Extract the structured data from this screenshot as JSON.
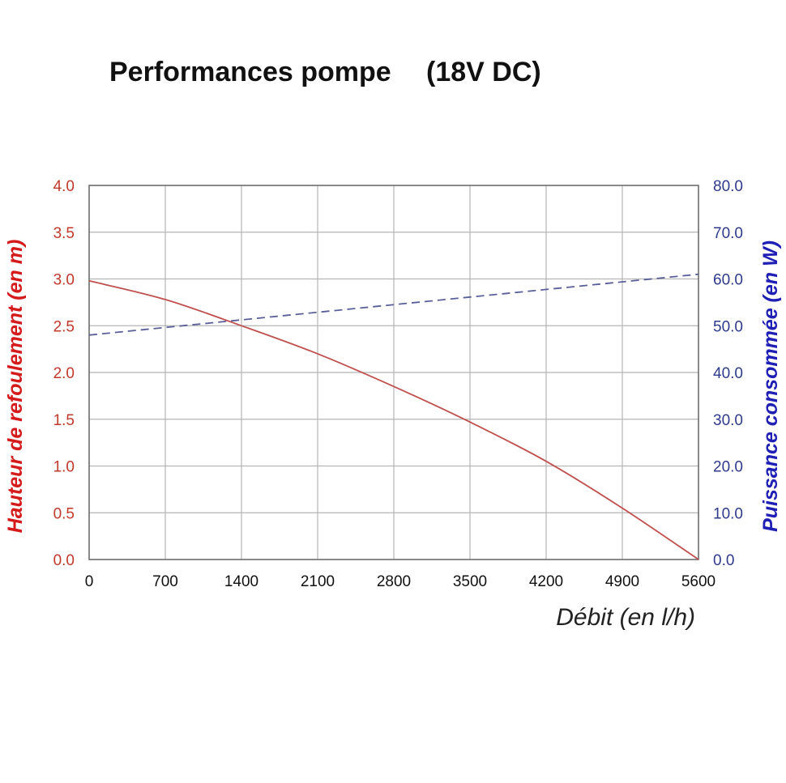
{
  "chart_data": {
    "type": "line",
    "title": "Performances pompe",
    "subtitle": "(18V DC)",
    "xlabel": "Débit (en l/h)",
    "ylabel": "Hauteur de refoulement (en m)",
    "y2label": "Puissance consommée (en W)",
    "xlim": [
      0,
      5600
    ],
    "ylim": [
      0,
      4.0
    ],
    "y2lim": [
      0,
      80.0
    ],
    "x_ticks": [
      "0",
      "700",
      "1400",
      "2100",
      "2800",
      "3500",
      "4200",
      "4900",
      "5600"
    ],
    "y_ticks": [
      "0.0",
      "0.5",
      "1.0",
      "1.5",
      "2.0",
      "2.5",
      "3.0",
      "3.5",
      "4.0"
    ],
    "y2_ticks": [
      "0.0",
      "10.0",
      "20.0",
      "30.0",
      "40.0",
      "50.0",
      "60.0",
      "70.0",
      "80.0"
    ],
    "grid": true,
    "series": [
      {
        "name": "Hauteur de refoulement",
        "axis": "left",
        "style": "solid",
        "color": "#c0504d",
        "x": [
          0,
          700,
          1400,
          2100,
          2800,
          3500,
          4200,
          4900,
          5600
        ],
        "values": [
          2.98,
          2.78,
          2.5,
          2.2,
          1.85,
          1.47,
          1.05,
          0.55,
          0.0
        ]
      },
      {
        "name": "Puissance consommée",
        "axis": "right",
        "style": "dashed",
        "color": "#5a5f99",
        "x": [
          0,
          5600
        ],
        "values": [
          48.0,
          61.0
        ]
      }
    ]
  }
}
